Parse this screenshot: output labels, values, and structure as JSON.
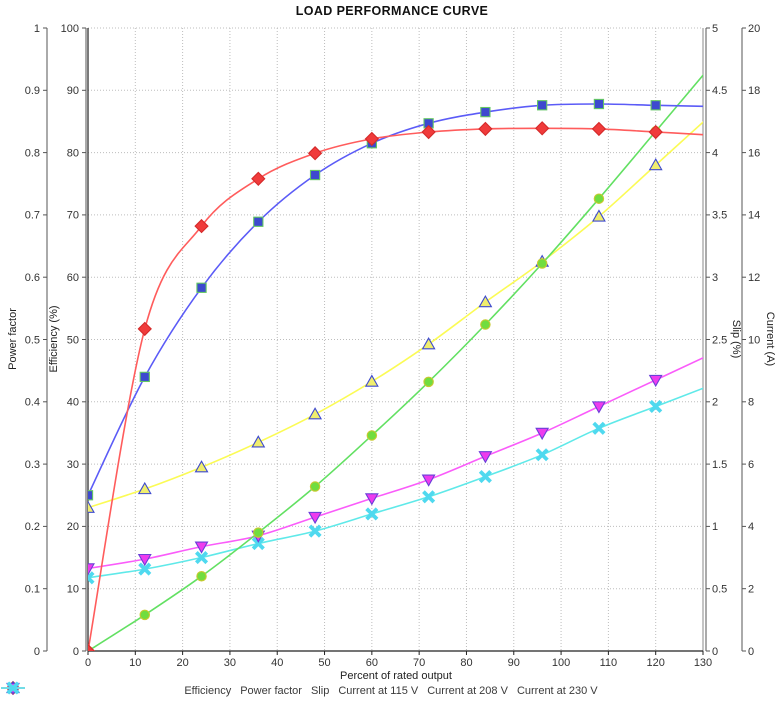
{
  "chart_data": {
    "type": "line",
    "title": "LOAD PERFORMANCE CURVE",
    "xlabel": "Percent of rated output",
    "xlim": [
      0,
      130
    ],
    "x_tick_step": 10,
    "grid": true,
    "legend_position": "bottom",
    "x": [
      0,
      12,
      24,
      36,
      48,
      60,
      72,
      84,
      96,
      108,
      120
    ],
    "y_axes": [
      {
        "label": "Power factor",
        "side": "left",
        "range": [
          0,
          1
        ],
        "tick_step": 0.1
      },
      {
        "label": "Efficiency (%)",
        "side": "left",
        "range": [
          0,
          100
        ],
        "tick_step": 10
      },
      {
        "label": "Slip (%)",
        "side": "right",
        "range": [
          0,
          5
        ],
        "tick_step": 0.5
      },
      {
        "label": "Current (A)",
        "side": "right",
        "range": [
          0,
          20
        ],
        "tick_step": 2
      }
    ],
    "series": [
      {
        "name": "Efficiency",
        "y_axis": "Efficiency (%)",
        "ymax": 100,
        "marker": "diamond",
        "line_color": "#ff5c5c",
        "marker_fill": "#f03b3b",
        "marker_edge": "#d42a2a",
        "values": [
          0,
          51.7,
          68.2,
          75.8,
          79.9,
          82.2,
          83.3,
          83.8,
          83.9,
          83.8,
          83.3
        ]
      },
      {
        "name": "Power factor",
        "y_axis": "Power factor",
        "ymax": 1,
        "marker": "square",
        "line_color": "#5b5bf7",
        "marker_fill": "#3d49cf",
        "marker_edge": "#63c763",
        "values": [
          0.25,
          0.44,
          0.583,
          0.689,
          0.764,
          0.815,
          0.847,
          0.865,
          0.876,
          0.878,
          0.876
        ]
      },
      {
        "name": "Slip",
        "y_axis": "Slip (%)",
        "ymax": 5,
        "marker": "circle",
        "line_color": "#62e062",
        "marker_fill": "#71dd3f",
        "marker_edge": "#c9c92f",
        "values": [
          0,
          0.29,
          0.6,
          0.95,
          1.32,
          1.73,
          2.16,
          2.62,
          3.11,
          3.63,
          4.17
        ]
      },
      {
        "name": "Current at 115 V",
        "y_axis": "Current (A)",
        "ymax": 20,
        "marker": "triangle-up",
        "line_color": "#fbfb55",
        "marker_fill": "#f0ee6e",
        "marker_edge": "#3d49cf",
        "values": [
          4.6,
          5.2,
          5.9,
          6.7,
          7.6,
          8.65,
          9.85,
          11.2,
          12.5,
          13.95,
          15.6
        ]
      },
      {
        "name": "Current at 208 V",
        "y_axis": "Current (A)",
        "ymax": 20,
        "marker": "triangle-down",
        "line_color": "#fa5cfa",
        "marker_fill": "#ee3bee",
        "marker_edge": "#6a3fd8",
        "values": [
          2.65,
          2.95,
          3.35,
          3.7,
          4.3,
          4.9,
          5.5,
          6.25,
          7.0,
          7.85,
          8.7
        ]
      },
      {
        "name": "Current at 230 V",
        "y_axis": "Current (A)",
        "ymax": 20,
        "marker": "x-cross",
        "line_color": "#5fe9e9",
        "marker_fill": "#4fd9ef",
        "marker_edge": "#2fc3e0",
        "values": [
          2.35,
          2.63,
          3.0,
          3.45,
          3.85,
          4.4,
          4.95,
          5.6,
          6.3,
          7.15,
          7.85
        ]
      }
    ],
    "colors": {
      "grid": "#bdbdbd",
      "axis_line": "#555555",
      "border": "#222222",
      "right_border": "#8a8a8a",
      "tick_text": "#333333"
    }
  }
}
